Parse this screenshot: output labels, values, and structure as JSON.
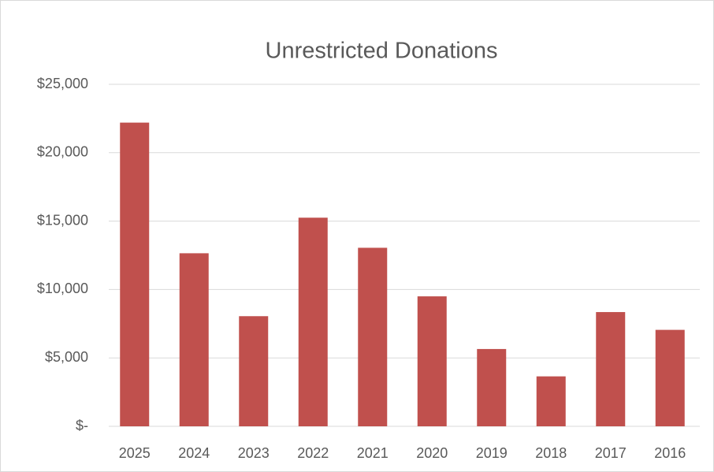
{
  "chart_data": {
    "type": "bar",
    "title": "Unrestricted Donations",
    "categories": [
      "2025",
      "2024",
      "2023",
      "2022",
      "2021",
      "2020",
      "2019",
      "2018",
      "2017",
      "2016"
    ],
    "values": [
      22200,
      12650,
      8050,
      15250,
      13050,
      9500,
      5650,
      3650,
      8350,
      7050
    ],
    "color": "#c0504d",
    "ylim": [
      0,
      25000
    ],
    "yticks": [
      {
        "value": 0,
        "label": "$-"
      },
      {
        "value": 5000,
        "label": "$5,000"
      },
      {
        "value": 10000,
        "label": "$10,000"
      },
      {
        "value": 15000,
        "label": "$15,000"
      },
      {
        "value": 20000,
        "label": "$20,000"
      },
      {
        "value": 25000,
        "label": "$25,000"
      }
    ],
    "grid": true
  }
}
